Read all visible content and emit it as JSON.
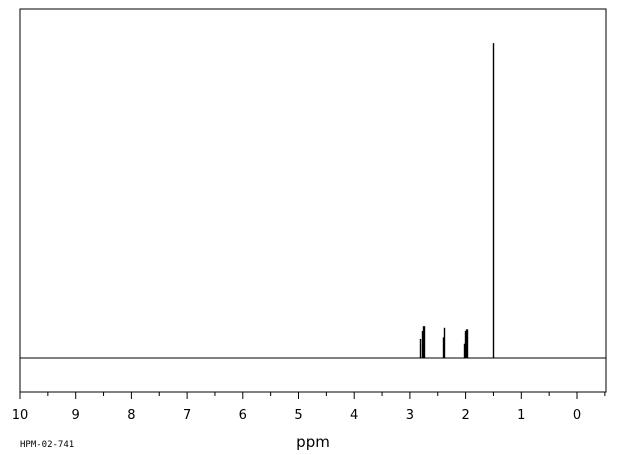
{
  "chart_data": {
    "type": "line",
    "title": "",
    "xlabel": "ppm",
    "ylabel": "",
    "xlim": [
      10,
      -0.5
    ],
    "ylim": [
      0,
      1
    ],
    "x_reversed": true,
    "grid": false,
    "spectrum_code": "HPM-02-741",
    "x_ticks": [
      10,
      9,
      8,
      7,
      6,
      5,
      4,
      3,
      2,
      1,
      0
    ],
    "x_tick_labels": [
      "10",
      "9",
      "8",
      "7",
      "6",
      "5",
      "4",
      "3",
      "2",
      "1",
      "0"
    ],
    "series": [
      {
        "peaks": [
          {
            "x": 2.81,
            "y": 0.06
          },
          {
            "x": 2.79,
            "y": 0.085
          },
          {
            "x": 2.77,
            "y": 0.1
          },
          {
            "x": 2.75,
            "y": 0.1
          },
          {
            "x": 2.41,
            "y": 0.065
          },
          {
            "x": 2.39,
            "y": 0.095
          },
          {
            "x": 2.03,
            "y": 0.045
          },
          {
            "x": 2.01,
            "y": 0.085
          },
          {
            "x": 1.99,
            "y": 0.09
          },
          {
            "x": 1.97,
            "y": 0.09
          },
          {
            "x": 1.51,
            "y": 0.99
          }
        ]
      }
    ]
  }
}
